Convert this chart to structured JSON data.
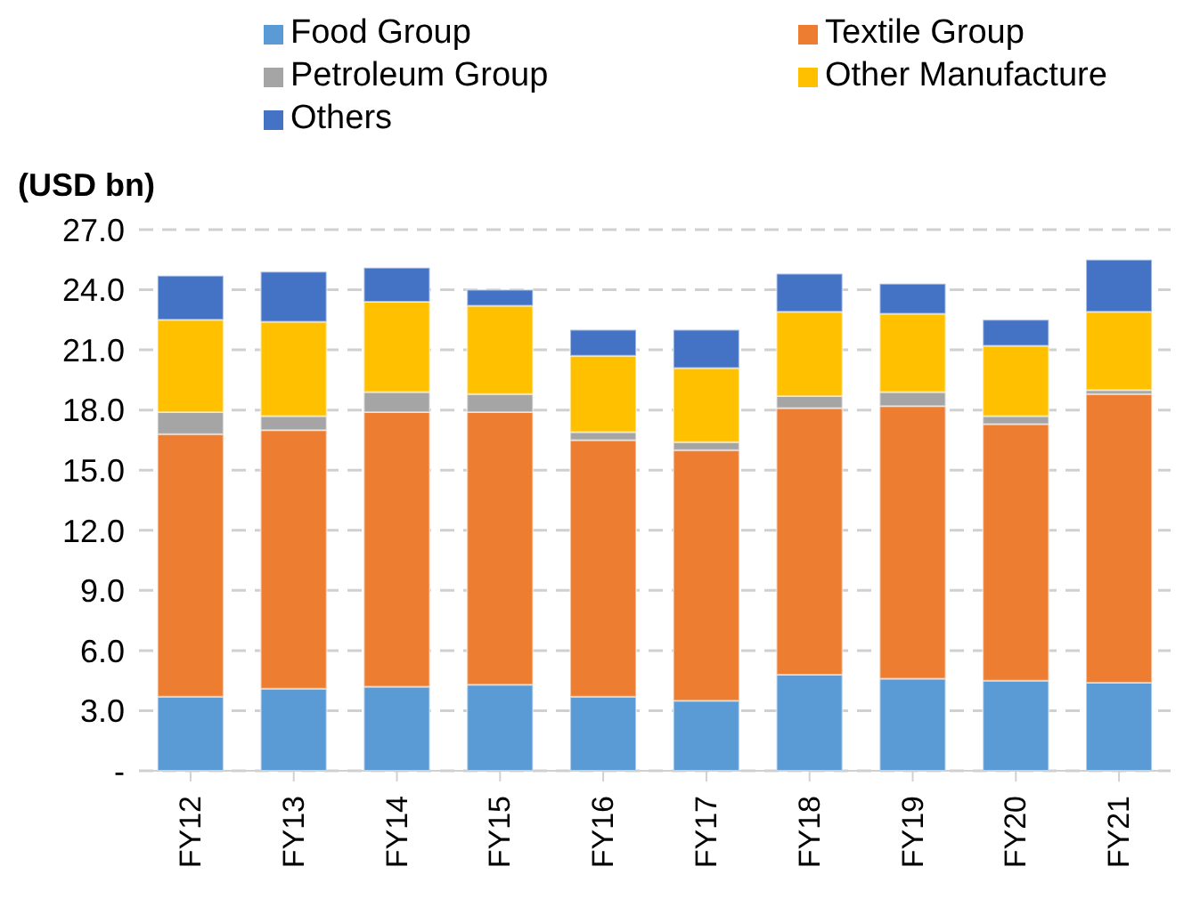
{
  "chart_data": {
    "type": "bar",
    "stacked": true,
    "ylabel": "(USD bn)",
    "categories": [
      "FY12",
      "FY13",
      "FY14",
      "FY15",
      "FY16",
      "FY17",
      "FY18",
      "FY19",
      "FY20",
      "FY21"
    ],
    "series": [
      {
        "name": "Food Group",
        "color": "#5b9bd5",
        "values": [
          3.7,
          4.1,
          4.2,
          4.3,
          3.7,
          3.5,
          4.8,
          4.6,
          4.5,
          4.4
        ]
      },
      {
        "name": "Textile Group",
        "color": "#ed7d31",
        "values": [
          13.1,
          12.9,
          13.7,
          13.6,
          12.8,
          12.5,
          13.3,
          13.6,
          12.8,
          14.4
        ]
      },
      {
        "name": "Petroleum Group",
        "color": "#a5a5a5",
        "values": [
          1.1,
          0.7,
          1.0,
          0.9,
          0.4,
          0.4,
          0.6,
          0.7,
          0.4,
          0.2
        ]
      },
      {
        "name": "Other Manufacture",
        "color": "#ffc000",
        "values": [
          4.6,
          4.7,
          4.5,
          4.4,
          3.8,
          3.7,
          4.2,
          3.9,
          3.5,
          3.9
        ]
      },
      {
        "name": "Others",
        "color": "#4472c4",
        "values": [
          2.2,
          2.5,
          1.7,
          0.8,
          1.3,
          1.9,
          1.9,
          1.5,
          1.3,
          2.6
        ]
      }
    ],
    "ylim": [
      0,
      27
    ],
    "yticks": [
      {
        "value": 0,
        "label": "-"
      },
      {
        "value": 3,
        "label": "3.0"
      },
      {
        "value": 6,
        "label": "6.0"
      },
      {
        "value": 9,
        "label": "9.0"
      },
      {
        "value": 12,
        "label": "12.0"
      },
      {
        "value": 15,
        "label": "15.0"
      },
      {
        "value": 18,
        "label": "18.0"
      },
      {
        "value": 21,
        "label": "21.0"
      },
      {
        "value": 24,
        "label": "24.0"
      },
      {
        "value": 27,
        "label": "27.0"
      }
    ],
    "grid": "y",
    "legend": "top"
  }
}
